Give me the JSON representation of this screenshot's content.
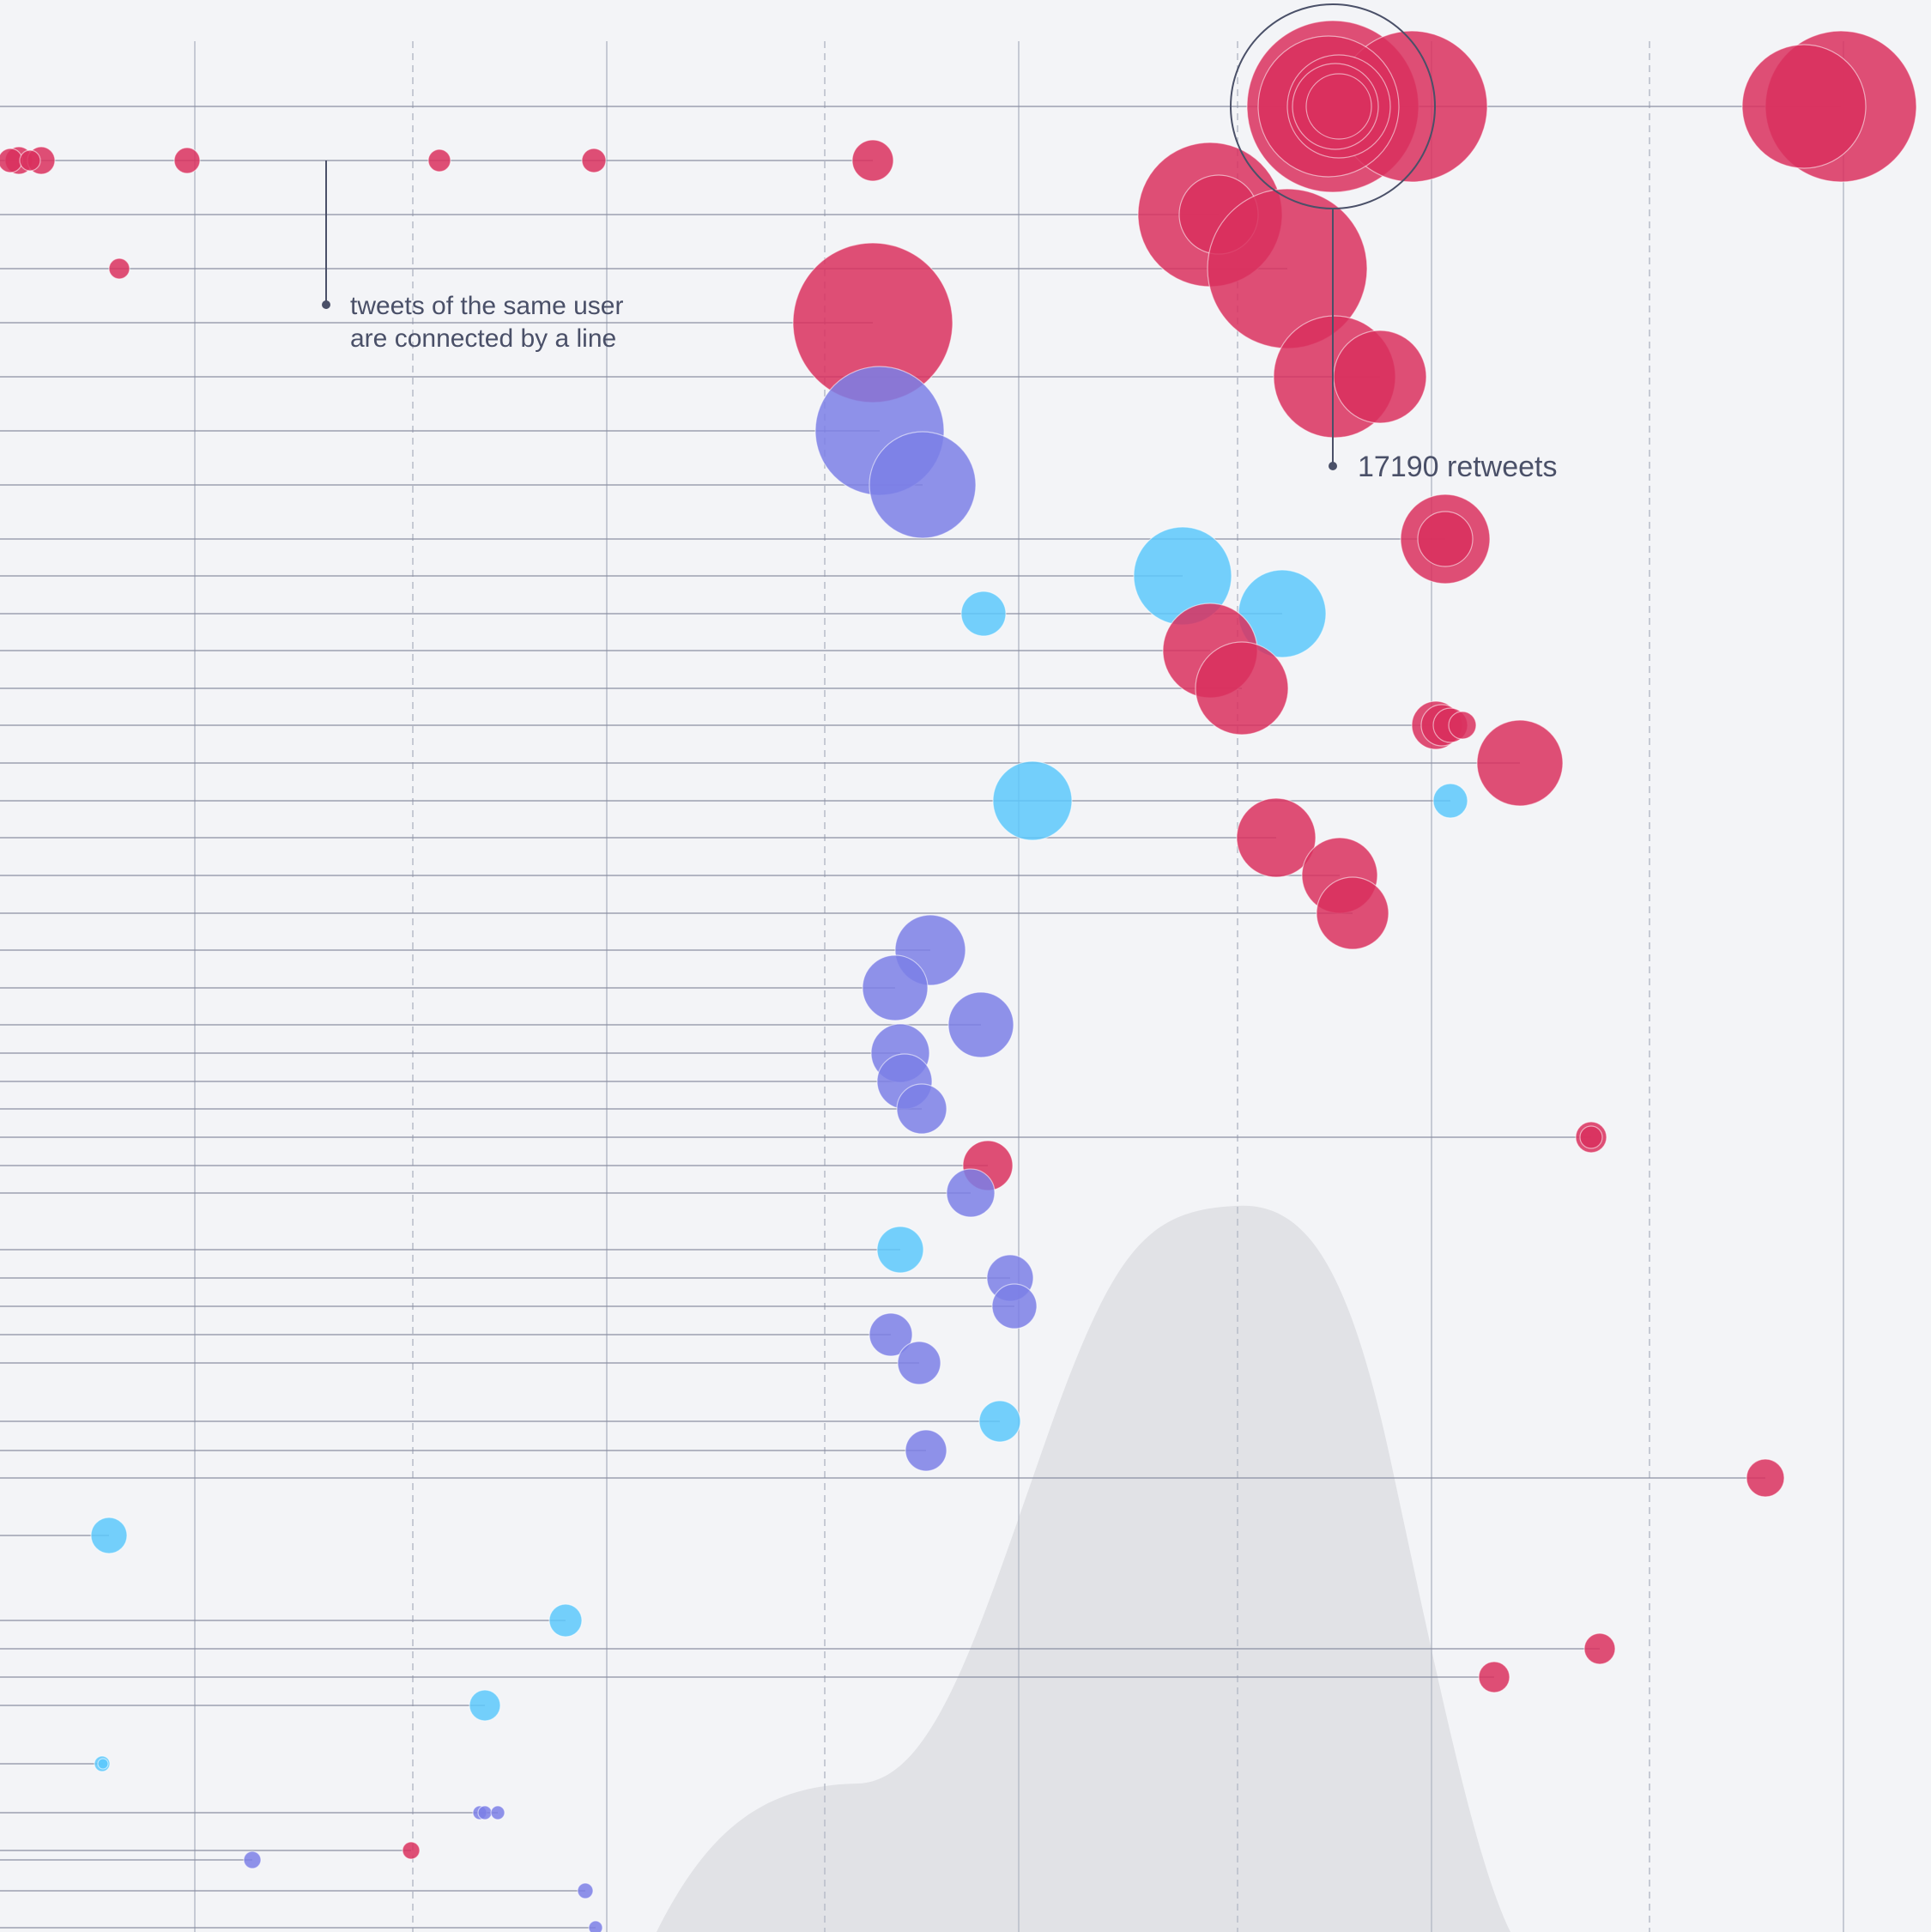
{
  "colors": {
    "background": "#f3f4f7",
    "grid": "#b8bcc8",
    "connector": "#8a8fa3",
    "density": "#e1e2e6",
    "annotation": "#4a5068",
    "red": "#d9305e",
    "purple": "#7b7fe6",
    "blue": "#5cc8fb"
  },
  "annotations": {
    "same_user_note_line1": "tweets of the same user",
    "same_user_note_line2": "are connected by a line",
    "highlight_label": "17190 retweets"
  },
  "chart_data": {
    "type": "scatter",
    "encoding": "bubble timeline: x = time position, row = user, bubble area = retweets, color = group",
    "grid": true,
    "xlim": [
      0,
      2250
    ],
    "highlight": {
      "row": 1,
      "x": 1553,
      "retweets": 17190
    },
    "groups": [
      "red",
      "purple",
      "blue"
    ],
    "rows": [
      {
        "row": 1,
        "color": "red",
        "tweets": [
          {
            "x": 1553,
            "r": 100
          },
          {
            "x": 1548,
            "r": 82
          },
          {
            "x": 1560,
            "r": 60
          },
          {
            "x": 1556,
            "r": 50
          },
          {
            "x": 1560,
            "r": 38
          },
          {
            "x": 1645,
            "r": 88
          },
          {
            "x": 2102,
            "r": 72
          },
          {
            "x": 2145,
            "r": 88
          }
        ]
      },
      {
        "row": 2,
        "color": "red",
        "tweets": [
          {
            "x": 12,
            "r": 14
          },
          {
            "x": 22,
            "r": 16
          },
          {
            "x": 35,
            "r": 12
          },
          {
            "x": 48,
            "r": 16
          },
          {
            "x": 218,
            "r": 15
          },
          {
            "x": 512,
            "r": 13
          },
          {
            "x": 692,
            "r": 14
          },
          {
            "x": 1017,
            "r": 24
          }
        ]
      },
      {
        "row": 3,
        "color": "red",
        "tweets": [
          {
            "x": 1410,
            "r": 84
          },
          {
            "x": 1420,
            "r": 46
          }
        ]
      },
      {
        "row": 4,
        "color": "red",
        "tweets": [
          {
            "x": 139,
            "r": 12
          },
          {
            "x": 1500,
            "r": 93
          }
        ]
      },
      {
        "row": 5,
        "color": "red",
        "tweets": [
          {
            "x": 1017,
            "r": 93
          }
        ]
      },
      {
        "row": 6,
        "color": "red",
        "tweets": [
          {
            "x": 1555,
            "r": 71
          },
          {
            "x": 1608,
            "r": 54
          }
        ]
      },
      {
        "row": 7,
        "color": "purple",
        "tweets": [
          {
            "x": 1025,
            "r": 75
          }
        ]
      },
      {
        "row": 8,
        "color": "purple",
        "tweets": [
          {
            "x": 1075,
            "r": 62
          }
        ]
      },
      {
        "row": 9,
        "color": "red",
        "tweets": [
          {
            "x": 1684,
            "r": 52
          },
          {
            "x": 1684,
            "r": 32
          }
        ]
      },
      {
        "row": 10,
        "color": "blue",
        "tweets": [
          {
            "x": 1378,
            "r": 57
          }
        ]
      },
      {
        "row": 11,
        "color": "blue",
        "tweets": [
          {
            "x": 1146,
            "r": 26
          },
          {
            "x": 1494,
            "r": 51
          }
        ]
      },
      {
        "row": 12,
        "color": "red",
        "tweets": [
          {
            "x": 1410,
            "r": 55
          }
        ]
      },
      {
        "row": 13,
        "color": "red",
        "tweets": [
          {
            "x": 1447,
            "r": 54
          }
        ]
      },
      {
        "row": 14,
        "color": "red",
        "tweets": [
          {
            "x": 1673,
            "r": 28
          },
          {
            "x": 1680,
            "r": 24
          },
          {
            "x": 1690,
            "r": 20
          },
          {
            "x": 1704,
            "r": 16
          }
        ]
      },
      {
        "row": 15,
        "color": "red",
        "tweets": [
          {
            "x": 1771,
            "r": 50
          }
        ]
      },
      {
        "row": 16,
        "color": "blue",
        "tweets": [
          {
            "x": 1203,
            "r": 46
          },
          {
            "x": 1690,
            "r": 20
          }
        ]
      },
      {
        "row": 17,
        "color": "red",
        "tweets": [
          {
            "x": 1487,
            "r": 46
          }
        ]
      },
      {
        "row": 18,
        "color": "red",
        "tweets": [
          {
            "x": 1561,
            "r": 44
          }
        ]
      },
      {
        "row": 19,
        "color": "red",
        "tweets": [
          {
            "x": 1576,
            "r": 42
          }
        ]
      },
      {
        "row": 20,
        "color": "purple",
        "tweets": [
          {
            "x": 1084,
            "r": 41
          }
        ]
      },
      {
        "row": 21,
        "color": "purple",
        "tweets": [
          {
            "x": 1043,
            "r": 38
          }
        ]
      },
      {
        "row": 22,
        "color": "purple",
        "tweets": [
          {
            "x": 1143,
            "r": 38
          }
        ]
      },
      {
        "row": 23,
        "color": "purple",
        "tweets": [
          {
            "x": 1049,
            "r": 34
          }
        ]
      },
      {
        "row": 24,
        "color": "purple",
        "tweets": [
          {
            "x": 1054,
            "r": 32
          }
        ]
      },
      {
        "row": 25,
        "color": "purple",
        "tweets": [
          {
            "x": 1074,
            "r": 29
          }
        ]
      },
      {
        "row": 26,
        "color": "red",
        "tweets": [
          {
            "x": 1854,
            "r": 18
          },
          {
            "x": 1854,
            "r": 13
          }
        ]
      },
      {
        "row": 27,
        "color": "red",
        "tweets": [
          {
            "x": 1151,
            "r": 29
          }
        ]
      },
      {
        "row": 28,
        "color": "purple",
        "tweets": [
          {
            "x": 1131,
            "r": 28
          }
        ]
      },
      {
        "row": 29,
        "color": "blue",
        "tweets": [
          {
            "x": 1049,
            "r": 27
          }
        ]
      },
      {
        "row": 30,
        "color": "purple",
        "tweets": [
          {
            "x": 1177,
            "r": 27
          }
        ]
      },
      {
        "row": 31,
        "color": "purple",
        "tweets": [
          {
            "x": 1182,
            "r": 26
          }
        ]
      },
      {
        "row": 32,
        "color": "purple",
        "tweets": [
          {
            "x": 1038,
            "r": 25
          }
        ]
      },
      {
        "row": 33,
        "color": "purple",
        "tweets": [
          {
            "x": 1071,
            "r": 25
          }
        ]
      },
      {
        "row": 34,
        "color": "blue",
        "tweets": [
          {
            "x": 1165,
            "r": 24
          }
        ]
      },
      {
        "row": 35,
        "color": "purple",
        "tweets": [
          {
            "x": 1079,
            "r": 24
          }
        ]
      },
      {
        "row": 36,
        "color": "red",
        "tweets": [
          {
            "x": 2057,
            "r": 22
          }
        ]
      },
      {
        "row": 37,
        "color": "blue",
        "tweets": [
          {
            "x": 127,
            "r": 21
          }
        ]
      },
      {
        "row": 38,
        "color": "blue",
        "tweets": [
          {
            "x": 659,
            "r": 19
          }
        ]
      },
      {
        "row": 39,
        "color": "red",
        "tweets": [
          {
            "x": 1864,
            "r": 18
          }
        ]
      },
      {
        "row": 40,
        "color": "red",
        "tweets": [
          {
            "x": 1741,
            "r": 18
          }
        ]
      },
      {
        "row": 41,
        "color": "blue",
        "tweets": [
          {
            "x": 565,
            "r": 18
          }
        ]
      },
      {
        "row": 42,
        "color": "blue",
        "tweets": [
          {
            "x": 119,
            "r": 9
          },
          {
            "x": 120,
            "r": 6
          }
        ]
      },
      {
        "row": 43,
        "color": "purple",
        "tweets": [
          {
            "x": 559,
            "r": 8
          },
          {
            "x": 565,
            "r": 8
          },
          {
            "x": 580,
            "r": 8
          }
        ]
      },
      {
        "row": 44,
        "color": "red",
        "tweets": [
          {
            "x": 479,
            "r": 10
          }
        ]
      },
      {
        "row": 45,
        "color": "purple",
        "tweets": [
          {
            "x": 294,
            "r": 10
          }
        ]
      },
      {
        "row": 46,
        "color": "purple",
        "tweets": [
          {
            "x": 682,
            "r": 9
          }
        ]
      },
      {
        "row": 47,
        "color": "purple",
        "tweets": [
          {
            "x": 694,
            "r": 8
          }
        ]
      }
    ]
  }
}
